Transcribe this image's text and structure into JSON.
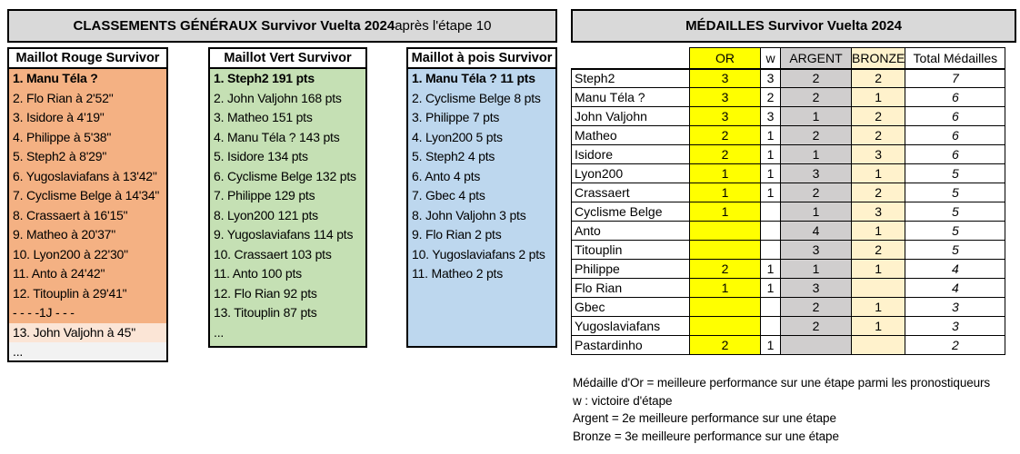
{
  "left_panel": {
    "title_bold": "CLASSEMENTS GÉNÉRAUX Survivor Vuelta 2024",
    "title_rest": " après l'étape 10",
    "columns": [
      {
        "header": "Maillot Rouge Survivor",
        "rows": [
          {
            "text": "1. Manu Téla ?",
            "variant": "bold"
          },
          {
            "text": "2. Flo Rian à 2'52\"",
            "variant": "normal"
          },
          {
            "text": "3. Isidore à 4'19\"",
            "variant": "normal"
          },
          {
            "text": "4. Philippe à 5'38\"",
            "variant": "normal"
          },
          {
            "text": "5. Steph2 à 8'29\"",
            "variant": "normal"
          },
          {
            "text": "6. Yugoslaviafans à 13'42\"",
            "variant": "normal"
          },
          {
            "text": "7. Cyclisme Belge à 14'34\"",
            "variant": "normal"
          },
          {
            "text": "8. Crassaert à 16'15\"",
            "variant": "normal"
          },
          {
            "text": "9. Matheo à 20'37\"",
            "variant": "normal"
          },
          {
            "text": "10. Lyon200 à 22'30\"",
            "variant": "normal"
          },
          {
            "text": "11. Anto à 24'42\"",
            "variant": "normal"
          },
          {
            "text": "12. Titouplin à 29'41\"",
            "variant": "normal"
          },
          {
            "text": " - - - -1J - - -",
            "variant": "separator"
          },
          {
            "text": "13. John Valjohn à 45\"",
            "variant": "light"
          },
          {
            "text": "...",
            "variant": "gray"
          }
        ]
      },
      {
        "header": "Maillot Vert Survivor",
        "rows": [
          {
            "text": "1. Steph2 191 pts",
            "variant": "bold"
          },
          {
            "text": "2. John Valjohn 168 pts",
            "variant": "normal"
          },
          {
            "text": "3. Matheo 151 pts",
            "variant": "normal"
          },
          {
            "text": "4. Manu Téla ? 143 pts",
            "variant": "normal"
          },
          {
            "text": "5. Isidore 134 pts",
            "variant": "normal"
          },
          {
            "text": "6. Cyclisme Belge 132 pts",
            "variant": "normal"
          },
          {
            "text": "7. Philippe 129 pts",
            "variant": "normal"
          },
          {
            "text": "8. Lyon200 121 pts",
            "variant": "normal"
          },
          {
            "text": "9. Yugoslaviafans 114 pts",
            "variant": "normal"
          },
          {
            "text": "10. Crassaert 103 pts",
            "variant": "normal"
          },
          {
            "text": "11. Anto 100 pts",
            "variant": "normal"
          },
          {
            "text": "12. Flo Rian 92 pts",
            "variant": "normal"
          },
          {
            "text": "13. Titouplin 87 pts",
            "variant": "normal"
          },
          {
            "text": "...",
            "variant": "normal"
          }
        ]
      },
      {
        "header": "Maillot à pois Survivor",
        "rows": [
          {
            "text": "1. Manu Téla ? 11 pts",
            "variant": "bold"
          },
          {
            "text": "2. Cyclisme Belge 8 pts",
            "variant": "normal"
          },
          {
            "text": "3. Philippe 7 pts",
            "variant": "normal"
          },
          {
            "text": "4. Lyon200 5 pts",
            "variant": "normal"
          },
          {
            "text": "5. Steph2 4 pts",
            "variant": "normal"
          },
          {
            "text": "6. Anto 4 pts",
            "variant": "normal"
          },
          {
            "text": "7. Gbec 4 pts",
            "variant": "normal"
          },
          {
            "text": "8. John Valjohn 3 pts",
            "variant": "normal"
          },
          {
            "text": "9. Flo Rian 2 pts",
            "variant": "normal"
          },
          {
            "text": "10. Yugoslaviafans 2 pts",
            "variant": "normal"
          },
          {
            "text": "11. Matheo 2 pts",
            "variant": "normal"
          }
        ]
      }
    ]
  },
  "medals_panel": {
    "title": "MÉDAILLES Survivor Vuelta 2024",
    "headers": {
      "name": "",
      "or": "OR",
      "w": "w",
      "argent": "ARGENT",
      "bronze": "BRONZE",
      "total": "Total Médailles"
    },
    "rows": [
      {
        "name": "Steph2",
        "bold": true,
        "or": "3",
        "w": "3",
        "argent": "2",
        "bronze": "2",
        "total": "7"
      },
      {
        "name": "Manu Téla ?",
        "bold": false,
        "or": "3",
        "w": "2",
        "argent": "2",
        "bronze": "1",
        "total": "6"
      },
      {
        "name": "John Valjohn",
        "bold": false,
        "or": "3",
        "w": "3",
        "argent": "1",
        "bronze": "2",
        "total": "6"
      },
      {
        "name": "Matheo",
        "bold": false,
        "or": "2",
        "w": "1",
        "argent": "2",
        "bronze": "2",
        "total": "6"
      },
      {
        "name": "Isidore",
        "bold": false,
        "or": "2",
        "w": "1",
        "argent": "1",
        "bronze": "3",
        "total": "6"
      },
      {
        "name": "Lyon200",
        "bold": false,
        "or": "1",
        "w": "1",
        "argent": "3",
        "bronze": "1",
        "total": "5"
      },
      {
        "name": "Crassaert",
        "bold": false,
        "or": "1",
        "w": "1",
        "argent": "2",
        "bronze": "2",
        "total": "5"
      },
      {
        "name": "Cyclisme Belge",
        "bold": false,
        "or": "1",
        "w": "",
        "argent": "1",
        "bronze": "3",
        "total": "5"
      },
      {
        "name": "Anto",
        "bold": false,
        "or": "",
        "w": "",
        "argent": "4",
        "bronze": "1",
        "total": "5"
      },
      {
        "name": "Titouplin",
        "bold": false,
        "or": "",
        "w": "",
        "argent": "3",
        "bronze": "2",
        "total": "5"
      },
      {
        "name": "Philippe",
        "bold": false,
        "or": "2",
        "w": "1",
        "argent": "1",
        "bronze": "1",
        "total": "4"
      },
      {
        "name": "Flo Rian",
        "bold": false,
        "or": "1",
        "w": "1",
        "argent": "3",
        "bronze": "",
        "total": "4"
      },
      {
        "name": "Gbec",
        "bold": false,
        "or": "",
        "w": "",
        "argent": "2",
        "bronze": "1",
        "total": "3"
      },
      {
        "name": "Yugoslaviafans",
        "bold": false,
        "or": "",
        "w": "",
        "argent": "2",
        "bronze": "1",
        "total": "3"
      },
      {
        "name": "Pastardinho",
        "bold": false,
        "or": "2",
        "w": "1",
        "argent": "",
        "bronze": "",
        "total": "2"
      }
    ]
  },
  "legend": {
    "lines": [
      "Médaille d'Or = meilleure performance sur une étape parmi les pronostiqueurs",
      "w : victoire d'étape",
      "Argent = 2e meilleure performance sur une étape",
      "Bronze = 3e meilleure performance sur une étape"
    ]
  },
  "colors": {
    "gray_header": "#d9d9d9",
    "orange": "#f4b183",
    "orange_light": "#fbe5d6",
    "row_gray": "#f2f2f2",
    "green": "#c5e0b4",
    "blue": "#bdd7ee",
    "or_yellow": "#ffff00",
    "argent_gray": "#d0cece",
    "bronze_cream": "#fff2cc"
  }
}
